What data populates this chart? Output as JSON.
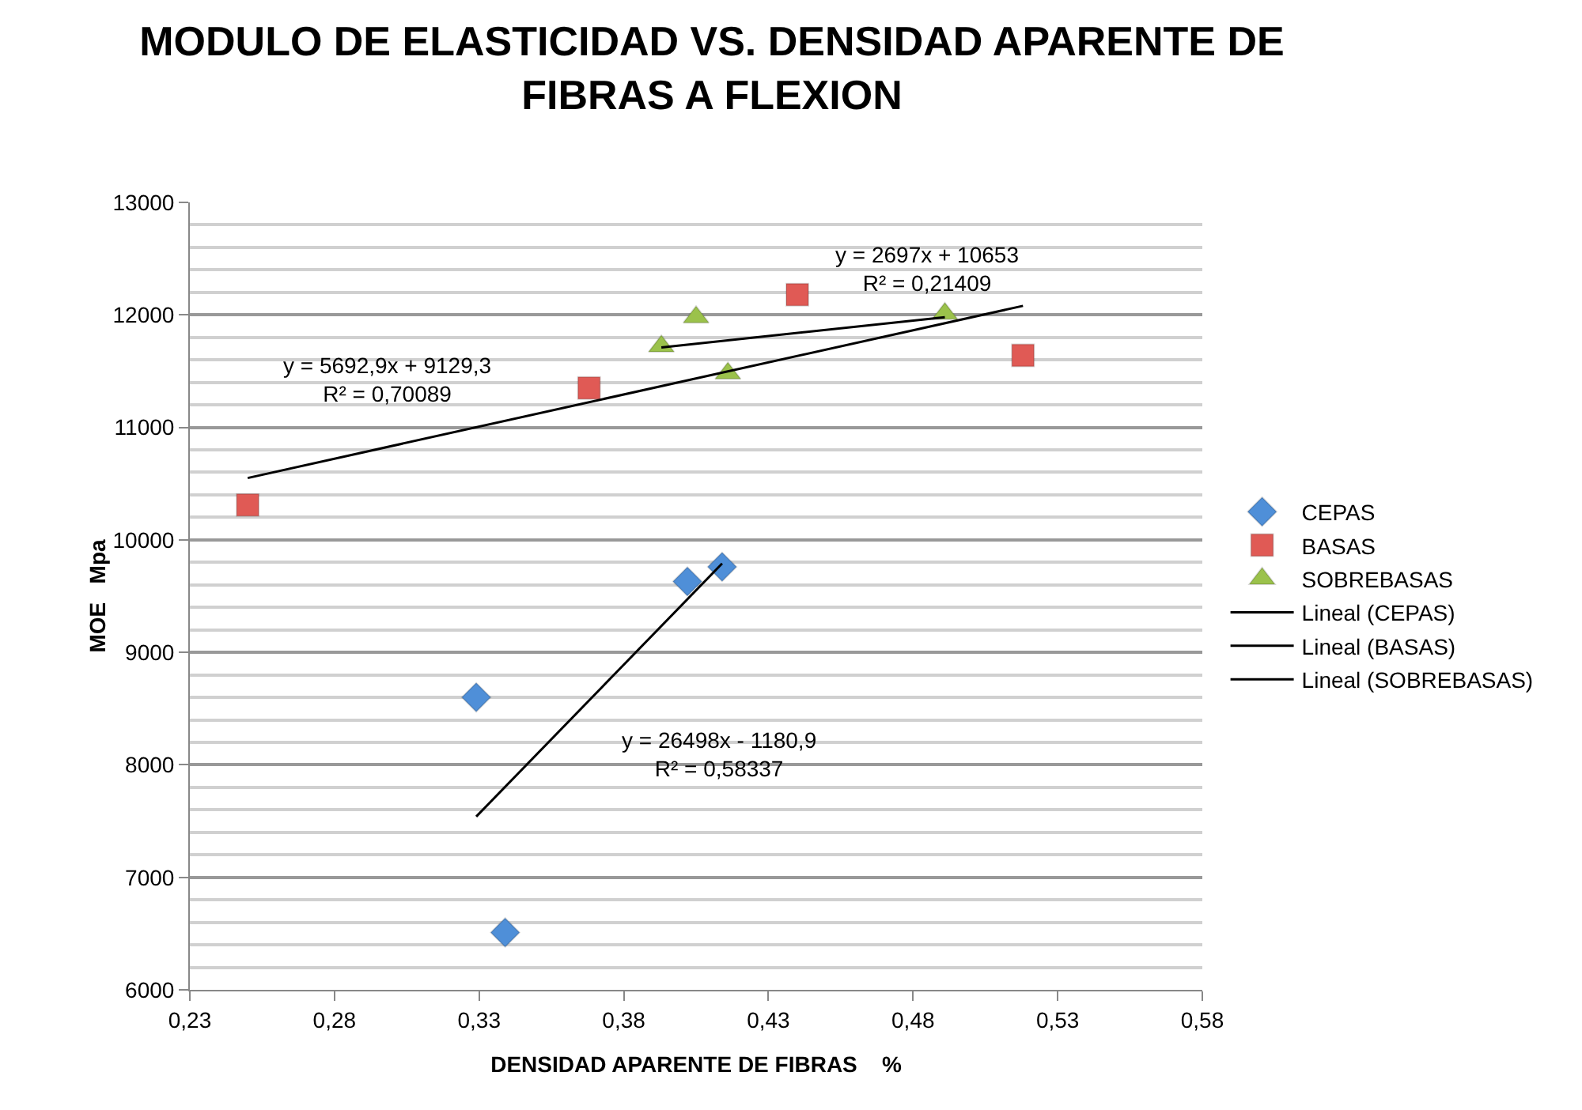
{
  "chart_data": {
    "type": "scatter",
    "title": "MODULO DE ELASTICIDAD VS. DENSIDAD APARENTE DE FIBRAS A FLEXION",
    "xlabel": "DENSIDAD APARENTE DE FIBRAS    %",
    "ylabel": "MOE   Mpa",
    "series": [
      {
        "name": "CEPAS",
        "color": "#4f8fd8",
        "marker": "diamond",
        "x": [
          0.329,
          0.339,
          0.402,
          0.414
        ],
        "values": [
          8600,
          6510,
          9630,
          9760
        ]
      },
      {
        "name": "BASAS",
        "color": "#e05a55",
        "marker": "square",
        "x": [
          0.25,
          0.368,
          0.44,
          0.518
        ],
        "values": [
          10310,
          11350,
          12180,
          11640
        ]
      },
      {
        "name": "SOBREBASAS",
        "color": "#9bc24b",
        "marker": "triangle",
        "x": [
          0.393,
          0.405,
          0.416,
          0.491
        ],
        "values": [
          11720,
          11980,
          11480,
          12010
        ]
      },
      {
        "name": "Lineal (CEPAS)",
        "type": "line",
        "color": "#000000",
        "marker": "none",
        "x": [
          0.329,
          0.414
        ],
        "values": [
          7540,
          9790
        ]
      },
      {
        "name": "Lineal (BASAS)",
        "type": "line",
        "color": "#000000",
        "marker": "none",
        "x": [
          0.25,
          0.518
        ],
        "values": [
          10550,
          12080
        ]
      },
      {
        "name": "Lineal (SOBREBASAS)",
        "type": "line",
        "color": "#000000",
        "marker": "none",
        "x": [
          0.393,
          0.491
        ],
        "values": [
          11710,
          11980
        ]
      }
    ],
    "annotations": [
      "y = 26498x - 1180,9\nR² = 0,58337",
      "y = 5692,9x + 9129,3\nR² = 0,70089",
      "y = 2697x + 10653\nR² = 0,21409"
    ],
    "xlim": [
      0.23,
      0.58
    ],
    "xticks": [
      {
        "value": 0.23,
        "label": "0,23"
      },
      {
        "value": 0.28,
        "label": "0,28"
      },
      {
        "value": 0.33,
        "label": "0,33"
      },
      {
        "value": 0.38,
        "label": "0,38"
      },
      {
        "value": 0.43,
        "label": "0,43"
      },
      {
        "value": 0.48,
        "label": "0,48"
      },
      {
        "value": 0.53,
        "label": "0,53"
      },
      {
        "value": 0.58,
        "label": "0,58"
      }
    ],
    "ylim": [
      6000,
      13000
    ],
    "yticks": [
      6000,
      7000,
      8000,
      9000,
      10000,
      11000,
      12000,
      13000
    ],
    "grid": "y",
    "legend": "right"
  }
}
